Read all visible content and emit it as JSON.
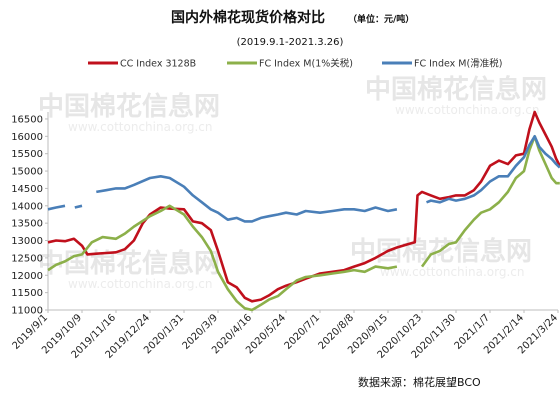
{
  "chart_data": {
    "type": "line",
    "title": "国内外棉花现货价格对比",
    "unit_note": "（单位：元/吨）",
    "subtitle": "(2019.9.1-2021.3.26)",
    "source": "数据来源：棉花展望BCO",
    "watermark": "中国棉花信息网",
    "watermark_url": "www.cottonchina.org.cn",
    "ylim": [
      11000,
      16700
    ],
    "yticks": [
      11000,
      11500,
      12000,
      12500,
      13000,
      13500,
      14000,
      14500,
      15000,
      15500,
      16000,
      16500
    ],
    "x_tick_labels": [
      "2019/9/1",
      "2019/10/9",
      "2019/11/16",
      "2019/12/24",
      "2020/1/31",
      "2020/3/9",
      "2020/4/16",
      "2020/5/24",
      "2020/7/1",
      "2020/8/8",
      "2020/9/15",
      "2020/10/23",
      "2020/11/30",
      "2021/1/7",
      "2021/2/14",
      "2021/3/24"
    ],
    "series": [
      {
        "name": "CC Index 3128B",
        "color": "#c0101c",
        "points": [
          [
            "2019/9/1",
            12950
          ],
          [
            "2019/9/10",
            13000
          ],
          [
            "2019/9/20",
            12980
          ],
          [
            "2019/9/30",
            13050
          ],
          [
            "2019/10/9",
            12850
          ],
          [
            "2019/10/15",
            12600
          ],
          [
            "2019/10/25",
            12620
          ],
          [
            "2019/11/5",
            12640
          ],
          [
            "2019/11/16",
            12660
          ],
          [
            "2019/11/26",
            12750
          ],
          [
            "2019/12/6",
            13000
          ],
          [
            "2019/12/16",
            13500
          ],
          [
            "2019/12/24",
            13750
          ],
          [
            "2020/1/5",
            13950
          ],
          [
            "2020/1/15",
            13920
          ],
          [
            "2020/1/31",
            13900
          ],
          [
            "2020/2/10",
            13550
          ],
          [
            "2020/2/20",
            13500
          ],
          [
            "2020/3/1",
            13300
          ],
          [
            "2020/3/9",
            12700
          ],
          [
            "2020/3/20",
            11800
          ],
          [
            "2020/3/30",
            11650
          ],
          [
            "2020/4/8",
            11350
          ],
          [
            "2020/4/16",
            11250
          ],
          [
            "2020/4/26",
            11300
          ],
          [
            "2020/5/5",
            11420
          ],
          [
            "2020/5/15",
            11600
          ],
          [
            "2020/5/24",
            11700
          ],
          [
            "2020/6/5",
            11800
          ],
          [
            "2020/6/15",
            11900
          ],
          [
            "2020/7/1",
            12050
          ],
          [
            "2020/7/15",
            12100
          ],
          [
            "2020/7/28",
            12150
          ],
          [
            "2020/8/8",
            12250
          ],
          [
            "2020/8/20",
            12350
          ],
          [
            "2020/9/1",
            12500
          ],
          [
            "2020/9/15",
            12700
          ],
          [
            "2020/9/25",
            12800
          ],
          [
            "2020/10/8",
            12900
          ],
          [
            "2020/10/15",
            12950
          ],
          [
            "2020/10/18",
            14300
          ],
          [
            "2020/10/23",
            14400
          ],
          [
            "2020/11/2",
            14300
          ],
          [
            "2020/11/12",
            14200
          ],
          [
            "2020/11/22",
            14250
          ],
          [
            "2020/11/30",
            14300
          ],
          [
            "2020/12/10",
            14300
          ],
          [
            "2020/12/20",
            14450
          ],
          [
            "2020/12/28",
            14700
          ],
          [
            "2021/1/7",
            15150
          ],
          [
            "2021/1/17",
            15300
          ],
          [
            "2021/1/27",
            15200
          ],
          [
            "2021/2/5",
            15450
          ],
          [
            "2021/2/14",
            15500
          ],
          [
            "2021/2/20",
            16200
          ],
          [
            "2021/2/26",
            16700
          ],
          [
            "2021/3/3",
            16400
          ],
          [
            "2021/3/10",
            16050
          ],
          [
            "2021/3/17",
            15700
          ],
          [
            "2021/3/22",
            15350
          ],
          [
            "2021/3/26",
            15150
          ]
        ]
      },
      {
        "name": "FC Index M(1%关税)",
        "color": "#8cb04a",
        "points": [
          [
            "2019/9/1",
            12150
          ],
          [
            "2019/9/10",
            12300
          ],
          [
            "2019/9/20",
            12400
          ],
          [
            "2019/9/30",
            12550
          ],
          [
            "2019/10/9",
            12600
          ],
          [
            "2019/10/20",
            12950
          ],
          [
            "2019/11/1",
            13100
          ],
          [
            "2019/11/16",
            13050
          ],
          [
            "2019/11/26",
            13200
          ],
          [
            "2019/12/6",
            13400
          ],
          [
            "2019/12/24",
            13700
          ],
          [
            "2020/1/5",
            13850
          ],
          [
            "2020/1/15",
            14000
          ],
          [
            "2020/1/31",
            13750
          ],
          [
            "2020/2/10",
            13400
          ],
          [
            "2020/2/20",
            13100
          ],
          [
            "2020/3/1",
            12700
          ],
          [
            "2020/3/9",
            12100
          ],
          [
            "2020/3/20",
            11600
          ],
          [
            "2020/3/30",
            11250
          ],
          [
            "2020/4/8",
            11050
          ],
          [
            "2020/4/16",
            11000
          ],
          [
            "2020/4/26",
            11150
          ],
          [
            "2020/5/5",
            11300
          ],
          [
            "2020/5/15",
            11400
          ],
          [
            "2020/5/24",
            11600
          ],
          [
            "2020/6/5",
            11850
          ],
          [
            "2020/6/15",
            11950
          ],
          [
            "2020/7/1",
            12000
          ],
          [
            "2020/7/15",
            12050
          ],
          [
            "2020/7/28",
            12100
          ],
          [
            "2020/8/8",
            12150
          ],
          [
            "2020/8/20",
            12100
          ],
          [
            "2020/9/1",
            12250
          ],
          [
            "2020/9/15",
            12200
          ],
          [
            "2020/9/25",
            12250
          ],
          [
            "2020/10/10",
            null
          ],
          [
            "2020/10/23",
            12250
          ],
          [
            "2020/11/2",
            12600
          ],
          [
            "2020/11/12",
            12700
          ],
          [
            "2020/11/22",
            12900
          ],
          [
            "2020/11/30",
            12950
          ],
          [
            "2020/12/10",
            13300
          ],
          [
            "2020/12/20",
            13600
          ],
          [
            "2020/12/28",
            13800
          ],
          [
            "2021/1/7",
            13900
          ],
          [
            "2021/1/17",
            14100
          ],
          [
            "2021/1/27",
            14400
          ],
          [
            "2021/2/5",
            14800
          ],
          [
            "2021/2/14",
            15000
          ],
          [
            "2021/2/20",
            15600
          ],
          [
            "2021/2/26",
            16000
          ],
          [
            "2021/3/3",
            15600
          ],
          [
            "2021/3/10",
            15200
          ],
          [
            "2021/3/17",
            14800
          ],
          [
            "2021/3/22",
            14650
          ],
          [
            "2021/3/26",
            14650
          ]
        ]
      },
      {
        "name": "FC Index M(滑准税)",
        "color": "#4a7fb8",
        "points": [
          [
            "2019/9/1",
            13900
          ],
          [
            "2019/9/10",
            13950
          ],
          [
            "2019/9/20",
            14000
          ],
          [
            "2019/9/25",
            null
          ],
          [
            "2019/10/1",
            13950
          ],
          [
            "2019/10/9",
            14000
          ],
          [
            "2019/10/20",
            null
          ],
          [
            "2019/10/25",
            14400
          ],
          [
            "2019/11/5",
            14450
          ],
          [
            "2019/11/16",
            14500
          ],
          [
            "2019/11/26",
            14500
          ],
          [
            "2019/12/6",
            14600
          ],
          [
            "2019/12/24",
            14800
          ],
          [
            "2020/1/5",
            14850
          ],
          [
            "2020/1/15",
            14800
          ],
          [
            "2020/1/31",
            14550
          ],
          [
            "2020/2/10",
            14300
          ],
          [
            "2020/2/20",
            14100
          ],
          [
            "2020/3/1",
            13900
          ],
          [
            "2020/3/9",
            13800
          ],
          [
            "2020/3/20",
            13600
          ],
          [
            "2020/3/30",
            13650
          ],
          [
            "2020/4/8",
            13550
          ],
          [
            "2020/4/16",
            13550
          ],
          [
            "2020/4/26",
            13650
          ],
          [
            "2020/5/5",
            13700
          ],
          [
            "2020/5/15",
            13750
          ],
          [
            "2020/5/24",
            13800
          ],
          [
            "2020/6/5",
            13750
          ],
          [
            "2020/6/15",
            13850
          ],
          [
            "2020/7/1",
            13800
          ],
          [
            "2020/7/15",
            13850
          ],
          [
            "2020/7/28",
            13900
          ],
          [
            "2020/8/8",
            13900
          ],
          [
            "2020/8/20",
            13850
          ],
          [
            "2020/9/1",
            13950
          ],
          [
            "2020/9/15",
            13850
          ],
          [
            "2020/9/25",
            13900
          ],
          [
            "2020/10/8",
            null
          ],
          [
            "2020/10/23",
            null
          ],
          [
            "2020/10/28",
            14100
          ],
          [
            "2020/11/2",
            14150
          ],
          [
            "2020/11/12",
            14100
          ],
          [
            "2020/11/22",
            14200
          ],
          [
            "2020/11/30",
            14150
          ],
          [
            "2020/12/10",
            14200
          ],
          [
            "2020/12/20",
            14300
          ],
          [
            "2020/12/28",
            14450
          ],
          [
            "2021/1/7",
            14700
          ],
          [
            "2021/1/17",
            14850
          ],
          [
            "2021/1/27",
            14850
          ],
          [
            "2021/2/5",
            15150
          ],
          [
            "2021/2/14",
            15400
          ],
          [
            "2021/2/20",
            15750
          ],
          [
            "2021/2/26",
            16000
          ],
          [
            "2021/3/3",
            15700
          ],
          [
            "2021/3/10",
            15500
          ],
          [
            "2021/3/17",
            15350
          ],
          [
            "2021/3/22",
            15200
          ],
          [
            "2021/3/26",
            15100
          ]
        ]
      }
    ]
  }
}
